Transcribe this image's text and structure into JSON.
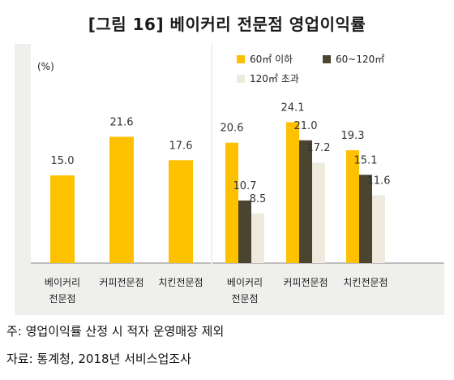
{
  "title": "[그림 16] 베이커리 전문점 영업이익률",
  "unit_label": "(%)",
  "footnote": "주: 영업이익률 산정 시 적자 운영매장 제외",
  "source": "자료: 통계청, 2018년 서비스업조사",
  "colors": {
    "yellow": "#fdc100",
    "dark": "#4a4431",
    "light": "#eeeade",
    "panel": "#efefed"
  },
  "chart_data": [
    {
      "type": "bar",
      "categories": [
        "베이커리\n전문점",
        "커피전문점",
        "치킨전문점"
      ],
      "values": [
        15.0,
        21.6,
        17.6
      ],
      "value_labels": [
        "15.0",
        "21.6",
        "17.6"
      ],
      "ylim": [
        0,
        30
      ]
    },
    {
      "type": "bar",
      "categories": [
        "베이커리\n전문점",
        "커피전문점",
        "치킨전문점"
      ],
      "series": [
        {
          "name": "60㎡ 이하",
          "values": [
            20.6,
            24.1,
            19.3
          ],
          "value_labels": [
            "20.6",
            "24.1",
            "19.3"
          ]
        },
        {
          "name": "60~120㎡",
          "values": [
            10.7,
            21.0,
            15.1
          ],
          "value_labels": [
            "10.7",
            "21.0",
            "15.1"
          ]
        },
        {
          "name": "120㎡ 초과",
          "values": [
            8.5,
            17.2,
            11.6
          ],
          "value_labels": [
            "8.5",
            "17.2",
            "11.6"
          ]
        }
      ],
      "legend": "top-right",
      "ylim": [
        0,
        30
      ]
    }
  ]
}
